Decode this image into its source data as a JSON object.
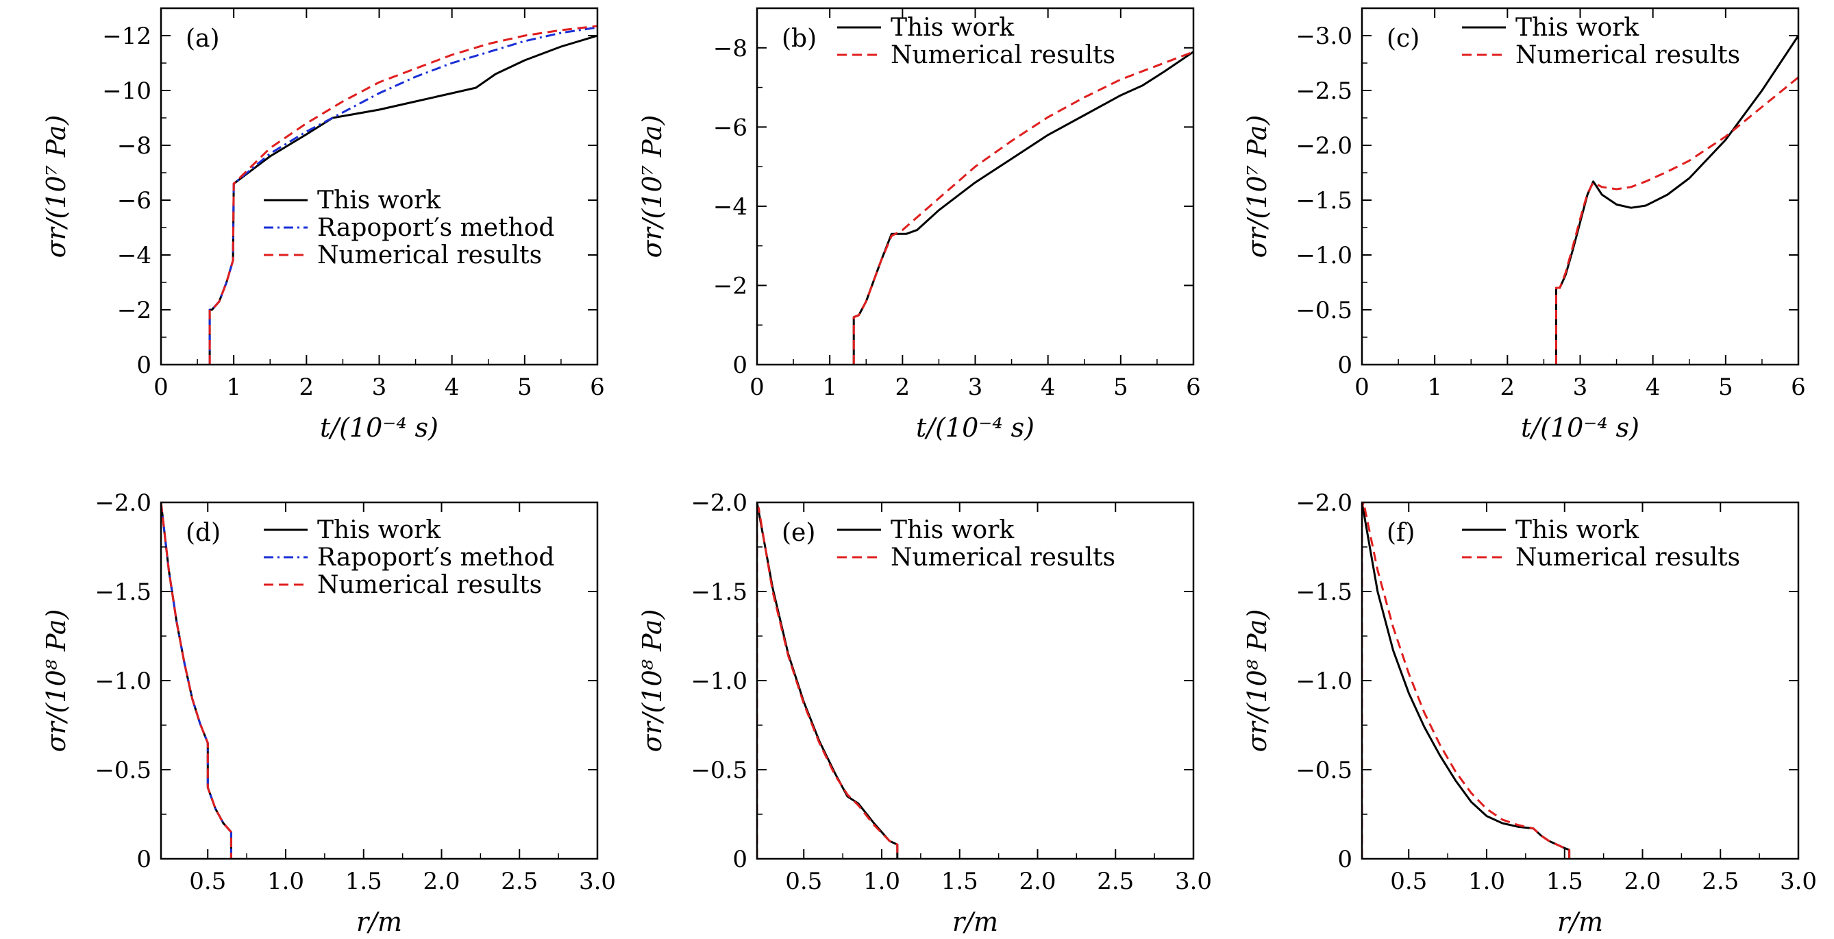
{
  "colors": {
    "this_work": "#000000",
    "rapoport": "#1a2fd6",
    "numerical": "#e01f1f"
  },
  "chart_data": [
    {
      "panel": "(a)",
      "type": "line",
      "xlabel": "t/(10⁻⁴ s)",
      "ylabel": "σr/(10⁷ Pa)",
      "xlim": [
        0,
        6
      ],
      "ylim": [
        0,
        -13
      ],
      "xticks": [
        0,
        1,
        2,
        3,
        4,
        5,
        6
      ],
      "xtick_labels": [
        "0",
        "1",
        "2",
        "3",
        "4",
        "5",
        "6"
      ],
      "yticks": [
        0,
        -2,
        -4,
        -6,
        -8,
        -10,
        -12
      ],
      "ytick_labels": [
        "0",
        "−2",
        "−4",
        "−6",
        "−8",
        "−10",
        "−12"
      ],
      "legend_position": "center",
      "series": [
        {
          "name": "This work",
          "style": "solid",
          "color_key": "this_work",
          "x": [
            0.67,
            0.67,
            0.7,
            0.8,
            0.9,
            0.99,
            1.0,
            1.1,
            1.5,
            2.0,
            2.36,
            3.0,
            3.5,
            4.0,
            4.33,
            4.6,
            5.0,
            5.5,
            6.0
          ],
          "y": [
            0,
            -2.0,
            -2.0,
            -2.3,
            -3.0,
            -3.8,
            -6.6,
            -6.8,
            -7.6,
            -8.4,
            -9.0,
            -9.3,
            -9.6,
            -9.9,
            -10.1,
            -10.6,
            -11.1,
            -11.6,
            -12.0
          ]
        },
        {
          "name": "Rapoport′s method",
          "style": "dashdot",
          "color_key": "rapoport",
          "x": [
            0.67,
            0.67,
            0.7,
            0.8,
            0.9,
            0.99,
            1.0,
            1.5,
            2.0,
            2.5,
            3.0,
            3.5,
            4.0,
            4.5,
            5.0,
            5.5,
            6.0
          ],
          "y": [
            0,
            -2.0,
            -2.0,
            -2.3,
            -3.0,
            -3.8,
            -6.6,
            -7.7,
            -8.5,
            -9.2,
            -9.9,
            -10.5,
            -11.0,
            -11.4,
            -11.8,
            -12.1,
            -12.3
          ]
        },
        {
          "name": "Numerical results",
          "style": "dashed",
          "color_key": "numerical",
          "x": [
            0.67,
            0.67,
            0.7,
            0.8,
            0.9,
            0.99,
            1.0,
            1.5,
            2.0,
            2.5,
            3.0,
            3.5,
            4.0,
            4.5,
            5.0,
            5.5,
            6.0
          ],
          "y": [
            0,
            -2.0,
            -2.0,
            -2.3,
            -3.0,
            -3.8,
            -6.6,
            -7.9,
            -8.8,
            -9.6,
            -10.3,
            -10.8,
            -11.3,
            -11.7,
            -12.0,
            -12.2,
            -12.35
          ]
        }
      ]
    },
    {
      "panel": "(b)",
      "type": "line",
      "xlabel": "t/(10⁻⁴ s)",
      "ylabel": "σr/(10⁷ Pa)",
      "xlim": [
        0,
        6
      ],
      "ylim": [
        0,
        -9
      ],
      "xticks": [
        0,
        1,
        2,
        3,
        4,
        5,
        6
      ],
      "xtick_labels": [
        "0",
        "1",
        "2",
        "3",
        "4",
        "5",
        "6"
      ],
      "yticks": [
        0,
        -2,
        -4,
        -6,
        -8
      ],
      "ytick_labels": [
        "0",
        "−2",
        "−4",
        "−6",
        "−8"
      ],
      "legend_position": "top-left",
      "series": [
        {
          "name": "This work",
          "style": "solid",
          "color_key": "this_work",
          "x": [
            1.33,
            1.33,
            1.4,
            1.5,
            1.6,
            1.7,
            1.85,
            1.95,
            2.05,
            2.2,
            2.5,
            3.0,
            3.5,
            4.0,
            4.5,
            5.0,
            5.3,
            5.6,
            6.0
          ],
          "y": [
            0,
            -1.2,
            -1.25,
            -1.6,
            -2.1,
            -2.6,
            -3.3,
            -3.3,
            -3.3,
            -3.4,
            -3.9,
            -4.6,
            -5.2,
            -5.8,
            -6.3,
            -6.8,
            -7.05,
            -7.4,
            -7.9
          ]
        },
        {
          "name": "Numerical results",
          "style": "dashed",
          "color_key": "numerical",
          "x": [
            1.33,
            1.33,
            1.4,
            1.5,
            1.6,
            1.7,
            1.85,
            2.0,
            2.5,
            3.0,
            3.5,
            4.0,
            4.5,
            5.0,
            5.5,
            6.0
          ],
          "y": [
            0,
            -1.2,
            -1.25,
            -1.6,
            -2.1,
            -2.6,
            -3.25,
            -3.4,
            -4.2,
            -5.0,
            -5.65,
            -6.25,
            -6.75,
            -7.2,
            -7.55,
            -7.9
          ]
        }
      ]
    },
    {
      "panel": "(c)",
      "type": "line",
      "xlabel": "t/(10⁻⁴ s)",
      "ylabel": "σr/(10⁷ Pa)",
      "xlim": [
        0,
        6
      ],
      "ylim": [
        0,
        -3.25
      ],
      "xticks": [
        0,
        1,
        2,
        3,
        4,
        5,
        6
      ],
      "xtick_labels": [
        "0",
        "1",
        "2",
        "3",
        "4",
        "5",
        "6"
      ],
      "yticks": [
        0,
        -0.5,
        -1.0,
        -1.5,
        -2.0,
        -2.5,
        -3.0
      ],
      "ytick_labels": [
        "0",
        "−0.5",
        "−1.0",
        "−1.5",
        "−2.0",
        "−2.5",
        "−3.0"
      ],
      "legend_position": "top-left",
      "series": [
        {
          "name": "This work",
          "style": "solid",
          "color_key": "this_work",
          "x": [
            2.67,
            2.67,
            2.72,
            2.8,
            2.9,
            3.0,
            3.1,
            3.18,
            3.3,
            3.5,
            3.7,
            3.9,
            4.2,
            4.5,
            5.0,
            5.5,
            6.0
          ],
          "y": [
            0,
            -0.7,
            -0.7,
            -0.82,
            -1.05,
            -1.3,
            -1.55,
            -1.67,
            -1.55,
            -1.46,
            -1.43,
            -1.45,
            -1.55,
            -1.7,
            -2.05,
            -2.5,
            -3.0
          ]
        },
        {
          "name": "Numerical results",
          "style": "dashed",
          "color_key": "numerical",
          "x": [
            2.67,
            2.67,
            2.72,
            2.8,
            2.9,
            3.0,
            3.1,
            3.18,
            3.3,
            3.5,
            3.7,
            3.9,
            4.2,
            4.5,
            5.0,
            5.5,
            6.0
          ],
          "y": [
            0,
            -0.7,
            -0.7,
            -0.84,
            -1.08,
            -1.33,
            -1.56,
            -1.66,
            -1.62,
            -1.6,
            -1.62,
            -1.67,
            -1.76,
            -1.86,
            -2.08,
            -2.35,
            -2.62
          ]
        }
      ]
    },
    {
      "panel": "(d)",
      "type": "line",
      "xlabel": "r/m",
      "ylabel": "σr/(10⁸ Pa)",
      "xlim": [
        0.2,
        3.0
      ],
      "ylim": [
        0,
        -2.0
      ],
      "xticks": [
        0.5,
        1.0,
        1.5,
        2.0,
        2.5,
        3.0
      ],
      "xtick_labels": [
        "0.5",
        "1.0",
        "1.5",
        "2.0",
        "2.5",
        "3.0"
      ],
      "yticks": [
        0,
        -0.5,
        -1.0,
        -1.5,
        -2.0
      ],
      "ytick_labels": [
        "0",
        "−0.5",
        "−1.0",
        "−1.5",
        "−2.0"
      ],
      "legend_position": "top-right",
      "series": [
        {
          "name": "This work",
          "style": "solid",
          "color_key": "this_work",
          "x": [
            0.2,
            0.25,
            0.3,
            0.35,
            0.4,
            0.45,
            0.5,
            0.5,
            0.55,
            0.6,
            0.65,
            0.65
          ],
          "y": [
            -2.0,
            -1.62,
            -1.33,
            -1.1,
            -0.9,
            -0.76,
            -0.65,
            -0.4,
            -0.28,
            -0.2,
            -0.15,
            0
          ]
        },
        {
          "name": "Rapoport′s method",
          "style": "dashdot",
          "color_key": "rapoport",
          "x": [
            0.2,
            0.25,
            0.3,
            0.35,
            0.4,
            0.45,
            0.5,
            0.5,
            0.55,
            0.6,
            0.65,
            0.65
          ],
          "y": [
            -2.0,
            -1.62,
            -1.33,
            -1.1,
            -0.9,
            -0.76,
            -0.65,
            -0.4,
            -0.28,
            -0.2,
            -0.15,
            0
          ]
        },
        {
          "name": "Numerical results",
          "style": "dashed",
          "color_key": "numerical",
          "x": [
            0.2,
            0.25,
            0.3,
            0.35,
            0.4,
            0.45,
            0.5,
            0.5,
            0.55,
            0.6,
            0.65,
            0.65
          ],
          "y": [
            -2.0,
            -1.62,
            -1.33,
            -1.1,
            -0.9,
            -0.76,
            -0.65,
            -0.4,
            -0.28,
            -0.2,
            -0.15,
            0
          ]
        }
      ]
    },
    {
      "panel": "(e)",
      "type": "line",
      "xlabel": "r/m",
      "ylabel": "σr/(10⁸ Pa)",
      "xlim": [
        0.2,
        3.0
      ],
      "ylim": [
        0,
        -2.0
      ],
      "xticks": [
        0.5,
        1.0,
        1.5,
        2.0,
        2.5,
        3.0
      ],
      "xtick_labels": [
        "0.5",
        "1.0",
        "1.5",
        "2.0",
        "2.5",
        "3.0"
      ],
      "yticks": [
        0,
        -0.5,
        -1.0,
        -1.5,
        -2.0
      ],
      "ytick_labels": [
        "0",
        "−0.5",
        "−1.0",
        "−1.5",
        "−2.0"
      ],
      "legend_position": "top-left",
      "series": [
        {
          "name": "This work",
          "style": "solid",
          "color_key": "this_work",
          "x": [
            0.2,
            0.3,
            0.4,
            0.5,
            0.6,
            0.7,
            0.78,
            0.85,
            0.95,
            1.05,
            1.1,
            1.1
          ],
          "y": [
            -2.0,
            -1.52,
            -1.15,
            -0.88,
            -0.66,
            -0.48,
            -0.35,
            -0.31,
            -0.2,
            -0.1,
            -0.08,
            0
          ]
        },
        {
          "name": "Numerical results",
          "style": "dashed",
          "color_key": "numerical",
          "x": [
            0.2,
            0.2,
            0.21,
            0.3,
            0.4,
            0.5,
            0.6,
            0.7,
            0.78,
            0.85,
            0.95,
            1.05,
            1.1,
            1.1
          ],
          "y": [
            0,
            -1.95,
            -1.97,
            -1.5,
            -1.14,
            -0.87,
            -0.65,
            -0.47,
            -0.36,
            -0.3,
            -0.19,
            -0.1,
            -0.08,
            0
          ]
        }
      ]
    },
    {
      "panel": "(f)",
      "type": "line",
      "xlabel": "r/m",
      "ylabel": "σr/(10⁸ Pa)",
      "xlim": [
        0.2,
        3.0
      ],
      "ylim": [
        0,
        -2.0
      ],
      "xticks": [
        0.5,
        1.0,
        1.5,
        2.0,
        2.5,
        3.0
      ],
      "xtick_labels": [
        "0.5",
        "1.0",
        "1.5",
        "2.0",
        "2.5",
        "3.0"
      ],
      "yticks": [
        0,
        -0.5,
        -1.0,
        -1.5,
        -2.0
      ],
      "ytick_labels": [
        "0",
        "−0.5",
        "−1.0",
        "−1.5",
        "−2.0"
      ],
      "legend_position": "top-left",
      "series": [
        {
          "name": "This work",
          "style": "solid",
          "color_key": "this_work",
          "x": [
            0.2,
            0.3,
            0.4,
            0.5,
            0.6,
            0.7,
            0.8,
            0.9,
            1.0,
            1.1,
            1.2,
            1.3,
            1.35,
            1.4,
            1.5,
            1.53,
            1.53
          ],
          "y": [
            -2.0,
            -1.5,
            -1.17,
            -0.93,
            -0.74,
            -0.58,
            -0.44,
            -0.32,
            -0.24,
            -0.2,
            -0.18,
            -0.17,
            -0.13,
            -0.1,
            -0.06,
            -0.05,
            0
          ]
        },
        {
          "name": "Numerical results",
          "style": "dashed",
          "color_key": "numerical",
          "x": [
            0.2,
            0.2,
            0.21,
            0.3,
            0.4,
            0.5,
            0.6,
            0.7,
            0.8,
            0.9,
            1.0,
            1.1,
            1.2,
            1.3,
            1.35,
            1.4,
            1.5,
            1.53,
            1.53
          ],
          "y": [
            0,
            -1.97,
            -2.0,
            -1.62,
            -1.3,
            -1.04,
            -0.82,
            -0.64,
            -0.49,
            -0.37,
            -0.28,
            -0.22,
            -0.19,
            -0.17,
            -0.13,
            -0.1,
            -0.06,
            -0.05,
            0
          ]
        }
      ]
    }
  ]
}
